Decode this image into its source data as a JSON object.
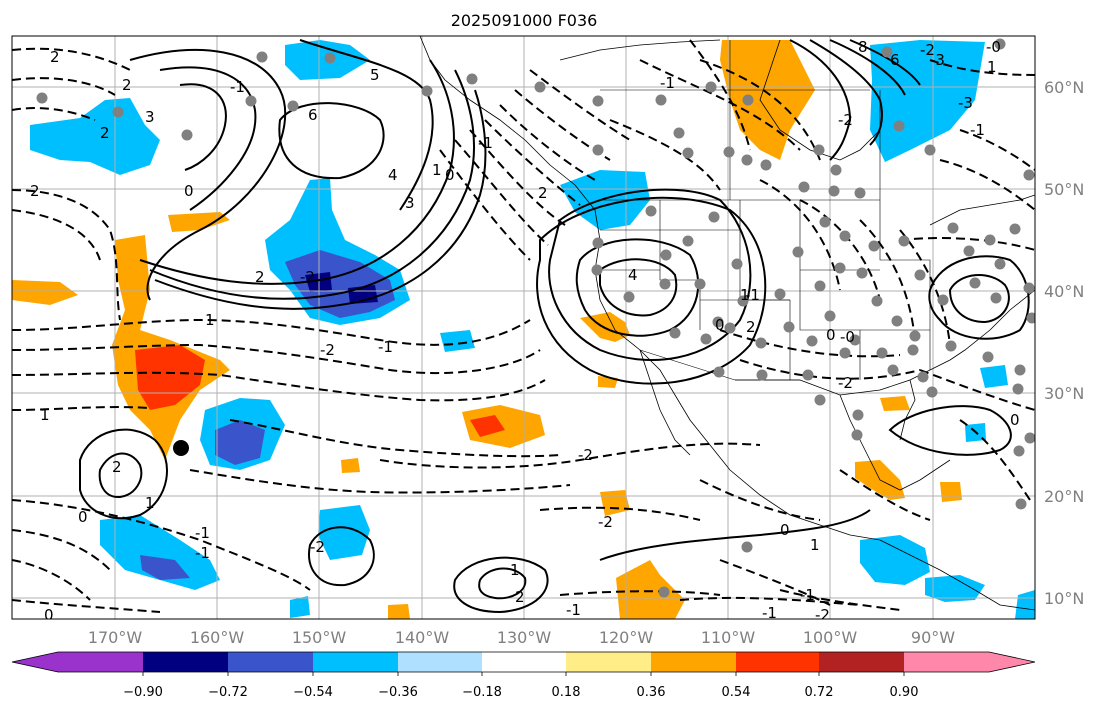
{
  "map": {
    "title": "2025091000 F036",
    "longitude_labels": [
      "170°W",
      "160°W",
      "150°W",
      "140°W",
      "130°W",
      "120°W",
      "110°W",
      "100°W",
      "90°W"
    ],
    "latitude_labels": [
      "60°N",
      "50°N",
      "40°N",
      "30°N",
      "20°N",
      "10°N"
    ]
  },
  "colorbar": {
    "ticks": [
      "−0.90",
      "−0.72",
      "−0.54",
      "−0.36",
      "−0.18",
      "0.18",
      "0.36",
      "0.54",
      "0.72",
      "0.90"
    ],
    "colors": [
      "#9933cc",
      "#000080",
      "#3a55cc",
      "#00bfff",
      "#b0e0ff",
      "#ffffff",
      "#ffee88",
      "#ffa500",
      "#ff3300",
      "#b22222",
      "#ff88aa"
    ]
  },
  "chart_data": {
    "type": "contour-map",
    "title": "2025091000 F036",
    "x_axis_labels": [
      "170°W",
      "160°W",
      "150°W",
      "140°W",
      "130°W",
      "120°W",
      "110°W",
      "100°W",
      "90°W"
    ],
    "y_axis_labels": [
      "60°N",
      "50°N",
      "40°N",
      "30°N",
      "20°N",
      "10°N"
    ],
    "colorbar_ticks": [
      -0.9,
      -0.72,
      -0.54,
      -0.36,
      -0.18,
      0.18,
      0.36,
      0.54,
      0.72,
      0.9
    ],
    "contour_labels": [
      "2",
      "2",
      "2",
      "3",
      "6",
      "0",
      "4",
      "3",
      "2",
      "1",
      "0",
      "-1",
      "-2",
      "-1",
      "1",
      "2",
      "-2",
      "-2",
      "1",
      "0",
      "-1",
      "-1",
      "-2",
      "2",
      "4",
      "1",
      "0",
      "-1",
      "-2",
      "-3",
      "-3",
      "1",
      "2",
      "0",
      "-1",
      "-2",
      "1",
      "2",
      "8",
      "5",
      "6",
      "0",
      "-1",
      "-2",
      "-1",
      "-1",
      "-2",
      "-0",
      "1",
      "-1",
      "0",
      "-2",
      "2",
      "1",
      "0",
      "-1",
      "-0"
    ],
    "markers": [
      {
        "lon": -163.5,
        "lat": 24.5,
        "type": "black-dot"
      }
    ]
  }
}
